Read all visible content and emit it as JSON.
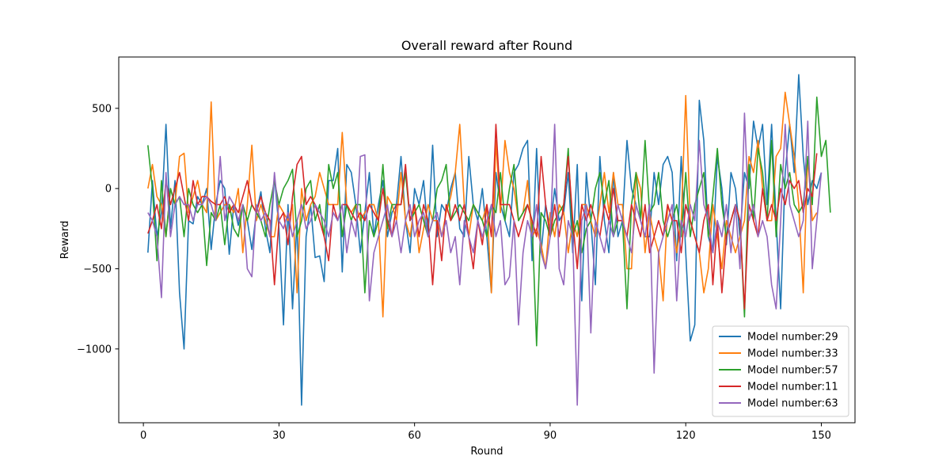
{
  "chart_data": {
    "type": "line",
    "title": "Overall reward after Round",
    "xlabel": "Round",
    "ylabel": "Reward",
    "xlim": [
      -5.45,
      157.45
    ],
    "ylim": [
      -1460,
      820
    ],
    "xticks": [
      0,
      30,
      60,
      90,
      120,
      150
    ],
    "yticks": [
      500,
      0,
      -500,
      -1000
    ],
    "ytick_labels": [
      "500",
      "0",
      "−500",
      "−1000"
    ],
    "grid": false,
    "legend_position": "lower-right",
    "x_start": 1,
    "series": [
      {
        "name": "Model number:29",
        "color": "#1f77b4",
        "values": [
          -400,
          50,
          -300,
          -150,
          400,
          -250,
          50,
          -650,
          -1000,
          -200,
          -220,
          -50,
          -100,
          0,
          -380,
          -100,
          50,
          0,
          -410,
          -100,
          -230,
          -100,
          -200,
          -380,
          -150,
          -20,
          -250,
          -400,
          80,
          -250,
          -850,
          -100,
          -750,
          -200,
          -1350,
          -300,
          -100,
          -430,
          -420,
          -580,
          50,
          50,
          250,
          -520,
          150,
          100,
          -100,
          -400,
          -150,
          100,
          -300,
          -100,
          50,
          -300,
          -150,
          -100,
          200,
          -200,
          -400,
          0,
          -100,
          50,
          -300,
          270,
          -300,
          -100,
          -150,
          0,
          100,
          -250,
          -300,
          200,
          -100,
          -200,
          0,
          -300,
          -650,
          100,
          -100,
          -200,
          -300,
          100,
          150,
          250,
          300,
          -450,
          250,
          -400,
          -100,
          -250,
          0,
          -200,
          -150,
          100,
          -400,
          150,
          -700,
          100,
          -200,
          -600,
          200,
          -200,
          -400,
          100,
          -300,
          -200,
          300,
          0,
          -100,
          -200,
          -300,
          -300,
          100,
          -100,
          150,
          200,
          100,
          -450,
          200,
          -400,
          -950,
          -850,
          550,
          300,
          -300,
          -400,
          200,
          0,
          -350,
          100,
          0,
          -300,
          100,
          0,
          420,
          250,
          400,
          -100,
          400,
          -200,
          -750,
          100,
          400,
          100,
          710,
          200,
          -100,
          50,
          0,
          100
        ]
      },
      {
        "name": "Model number:33",
        "color": "#ff7f0e",
        "values": [
          0,
          150,
          -50,
          -100,
          -300,
          0,
          -100,
          200,
          220,
          -150,
          -50,
          50,
          -100,
          -150,
          540,
          -200,
          -150,
          -100,
          -100,
          -150,
          0,
          -400,
          -100,
          270,
          -200,
          -100,
          -200,
          -300,
          -300,
          -100,
          -150,
          -200,
          -100,
          -650,
          0,
          -200,
          -100,
          -50,
          100,
          0,
          -100,
          -100,
          -100,
          350,
          -100,
          -150,
          -100,
          -200,
          -150,
          -100,
          -100,
          -200,
          -800,
          -50,
          -100,
          -200,
          100,
          -200,
          -300,
          -100,
          -400,
          -250,
          -100,
          -200,
          -200,
          -300,
          -150,
          -50,
          100,
          400,
          -100,
          -300,
          -100,
          -150,
          -200,
          -100,
          -650,
          300,
          -150,
          300,
          100,
          0,
          -200,
          -150,
          50,
          -300,
          -250,
          -350,
          -500,
          -150,
          -300,
          -100,
          -150,
          -400,
          -200,
          -300,
          -100,
          -100,
          -200,
          -300,
          -100,
          100,
          -150,
          100,
          -100,
          -100,
          -500,
          -500,
          100,
          0,
          -400,
          -150,
          -300,
          -400,
          -700,
          -100,
          -200,
          -400,
          -200,
          580,
          -200,
          -300,
          -400,
          -650,
          -500,
          -100,
          -300,
          -500,
          -200,
          -300,
          -400,
          -300,
          -200,
          200,
          100,
          300,
          0,
          -200,
          -200,
          200,
          250,
          600,
          400,
          200,
          -100,
          -650,
          200,
          -200,
          -150
        ]
      },
      {
        "name": "Model number:57",
        "color": "#2ca02c",
        "values": [
          270,
          0,
          -450,
          50,
          -300,
          0,
          -100,
          -50,
          -300,
          0,
          -100,
          -150,
          -100,
          -480,
          -150,
          -200,
          -100,
          -350,
          -100,
          -250,
          -300,
          -100,
          -200,
          -100,
          -150,
          -200,
          -300,
          -100,
          50,
          -100,
          0,
          50,
          120,
          -300,
          -200,
          0,
          50,
          -200,
          -100,
          -300,
          150,
          0,
          100,
          -300,
          -100,
          -200,
          -100,
          -100,
          -650,
          -200,
          -300,
          -200,
          150,
          -250,
          -100,
          -100,
          -100,
          100,
          -200,
          -150,
          -100,
          -200,
          -300,
          -200,
          0,
          50,
          150,
          -200,
          -150,
          -100,
          -150,
          -200,
          -100,
          -150,
          -200,
          -300,
          -100,
          -150,
          100,
          -200,
          0,
          150,
          -200,
          -150,
          -100,
          -200,
          -980,
          -150,
          -200,
          -300,
          -200,
          -150,
          -100,
          250,
          -300,
          -200,
          -400,
          -250,
          -200,
          0,
          100,
          -100,
          50,
          -300,
          -200,
          -200,
          -750,
          -100,
          100,
          -200,
          300,
          -150,
          -100,
          100,
          -200,
          -300,
          -200,
          -100,
          -300,
          100,
          -300,
          -100,
          0,
          100,
          -300,
          -50,
          250,
          -100,
          -300,
          -200,
          -100,
          -200,
          -800,
          150,
          -200,
          250,
          100,
          -200,
          300,
          -300,
          150,
          0,
          100,
          -100,
          -150,
          -100,
          200,
          -100,
          570,
          200,
          300,
          -150
        ]
      },
      {
        "name": "Model number:11",
        "color": "#d62728",
        "values": [
          -280,
          -200,
          -100,
          -250,
          50,
          -100,
          0,
          100,
          -50,
          -200,
          50,
          -100,
          -50,
          -50,
          -80,
          -100,
          -100,
          -50,
          -150,
          -100,
          -150,
          -50,
          50,
          -100,
          -150,
          -50,
          -150,
          -200,
          -600,
          -200,
          -150,
          -350,
          -50,
          150,
          200,
          -100,
          -50,
          -100,
          -200,
          -300,
          -450,
          -100,
          -200,
          -100,
          -100,
          -150,
          -200,
          -150,
          -200,
          -100,
          -150,
          -200,
          0,
          -200,
          -300,
          -100,
          -100,
          150,
          -200,
          -100,
          -300,
          -100,
          -200,
          -600,
          -200,
          -450,
          -100,
          -200,
          -100,
          -200,
          -100,
          -300,
          -500,
          -200,
          -350,
          -100,
          -300,
          400,
          -100,
          -100,
          -100,
          -200,
          -300,
          -200,
          -100,
          -200,
          -300,
          200,
          -100,
          -300,
          -100,
          -300,
          -100,
          200,
          -200,
          -500,
          -100,
          -200,
          -100,
          -200,
          -300,
          -100,
          -200,
          0,
          -200,
          -200,
          -300,
          -100,
          -200,
          -300,
          -100,
          -400,
          -300,
          -200,
          -300,
          -100,
          -200,
          -200,
          -400,
          -100,
          -200,
          -300,
          -400,
          -200,
          -100,
          -600,
          -200,
          -650,
          -300,
          -200,
          -100,
          -200,
          -750,
          -100,
          -200,
          -300,
          0,
          -200,
          -100,
          -200,
          0,
          -100,
          50,
          0,
          50,
          -150,
          0,
          -50,
          220
        ]
      },
      {
        "name": "Model number:63",
        "color": "#9467bd",
        "values": [
          -150,
          -200,
          -300,
          -680,
          100,
          -300,
          -100,
          -50,
          -100,
          -100,
          -200,
          -100,
          -100,
          -50,
          -100,
          -200,
          200,
          -200,
          -50,
          -100,
          -200,
          -100,
          -500,
          -550,
          -100,
          -200,
          -150,
          -300,
          100,
          -200,
          -250,
          -150,
          -300,
          -200,
          -100,
          -250,
          -200,
          -100,
          -150,
          -200,
          -300,
          -150,
          -200,
          -100,
          -400,
          -200,
          -300,
          200,
          210,
          -700,
          -400,
          -300,
          -200,
          -100,
          -300,
          -200,
          -400,
          -200,
          -100,
          -300,
          -200,
          -150,
          -300,
          -200,
          -150,
          -300,
          -200,
          -400,
          -300,
          -600,
          -200,
          -300,
          -400,
          -200,
          -300,
          -200,
          -100,
          -300,
          -200,
          -600,
          -550,
          -200,
          -850,
          -400,
          -200,
          -300,
          -100,
          -400,
          -500,
          -300,
          400,
          -500,
          -600,
          -200,
          -300,
          -1350,
          -200,
          -100,
          -900,
          -200,
          -300,
          -400,
          -200,
          -300,
          -100,
          -200,
          -300,
          -400,
          -100,
          -200,
          -300,
          -100,
          -1150,
          -400,
          -300,
          -200,
          -100,
          -700,
          -200,
          -300,
          -100,
          -200,
          300,
          -100,
          -200,
          -400,
          -200,
          -300,
          -100,
          -400,
          -100,
          -500,
          470,
          -200,
          -100,
          -300,
          -200,
          -300,
          -600,
          -750,
          -200,
          400,
          -100,
          -200,
          -300,
          -200,
          420,
          -500,
          -200,
          100
        ]
      }
    ]
  }
}
